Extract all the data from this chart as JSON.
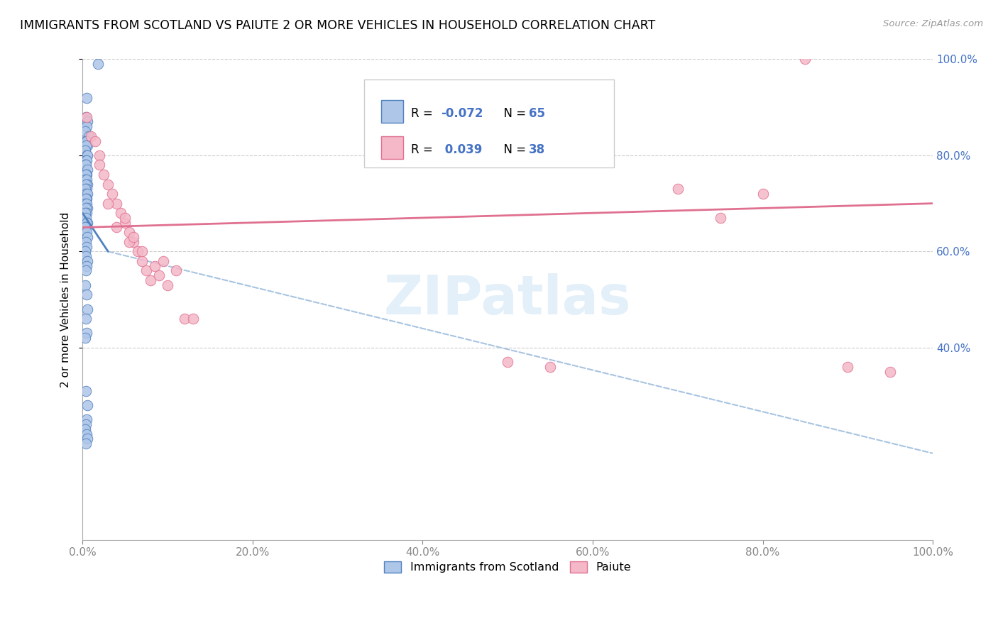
{
  "title": "IMMIGRANTS FROM SCOTLAND VS PAIUTE 2 OR MORE VEHICLES IN HOUSEHOLD CORRELATION CHART",
  "source": "Source: ZipAtlas.com",
  "ylabel": "2 or more Vehicles in Household",
  "xlim": [
    0,
    100
  ],
  "ylim": [
    0,
    100
  ],
  "blue_color": "#aec6e8",
  "pink_color": "#f4b8c8",
  "blue_line_color": "#5080c0",
  "pink_line_color": "#e07090",
  "dashed_line_color": "#a8c4e0",
  "watermark": "ZIPatlas",
  "scotland_x": [
    1.8,
    0.5,
    0.4,
    0.6,
    0.5,
    0.3,
    0.7,
    0.4,
    0.5,
    0.6,
    0.4,
    0.3,
    0.5,
    0.6,
    0.4,
    0.5,
    0.3,
    0.4,
    0.6,
    0.5,
    0.4,
    0.3,
    0.5,
    0.6,
    0.4,
    0.5,
    0.3,
    0.4,
    0.6,
    0.5,
    0.4,
    0.3,
    0.5,
    0.6,
    0.4,
    0.5,
    0.3,
    0.4,
    0.6,
    0.5,
    0.4,
    0.3,
    0.5,
    0.6,
    0.4,
    0.5,
    0.3,
    0.4,
    0.6,
    0.5,
    0.4,
    0.3,
    0.5,
    0.6,
    0.4,
    0.5,
    0.3,
    0.4,
    0.6,
    0.5,
    0.4,
    0.3,
    0.5,
    0.6,
    0.4
  ],
  "scotland_y": [
    99,
    92,
    88,
    87,
    86,
    85,
    84,
    83,
    83,
    82,
    82,
    81,
    80,
    80,
    79,
    79,
    78,
    78,
    77,
    76,
    76,
    75,
    75,
    74,
    74,
    73,
    73,
    72,
    72,
    71,
    71,
    70,
    70,
    69,
    69,
    68,
    68,
    67,
    66,
    66,
    65,
    65,
    64,
    63,
    62,
    61,
    60,
    59,
    58,
    57,
    56,
    53,
    51,
    48,
    46,
    43,
    42,
    31,
    28,
    25,
    24,
    23,
    22,
    21,
    20
  ],
  "paiute_x": [
    0.5,
    1.0,
    2.0,
    1.5,
    2.5,
    3.0,
    2.0,
    3.5,
    4.0,
    4.5,
    5.0,
    3.0,
    5.5,
    6.0,
    4.0,
    5.0,
    6.5,
    7.0,
    5.5,
    7.5,
    8.0,
    6.0,
    7.0,
    8.5,
    9.0,
    10.0,
    9.5,
    11.0,
    70.0,
    75.0,
    12.0,
    13.0,
    50.0,
    55.0,
    80.0,
    85.0,
    90.0,
    95.0
  ],
  "paiute_y": [
    88,
    84,
    80,
    83,
    76,
    74,
    78,
    72,
    70,
    68,
    66,
    70,
    64,
    62,
    65,
    67,
    60,
    58,
    62,
    56,
    54,
    63,
    60,
    57,
    55,
    53,
    58,
    56,
    73,
    67,
    46,
    46,
    37,
    36,
    72,
    100,
    36,
    35
  ],
  "blue_line_x0": 0,
  "blue_line_y0": 68,
  "blue_line_x1": 3.0,
  "blue_line_y1": 60,
  "blue_dash_x0": 3.0,
  "blue_dash_y0": 60,
  "blue_dash_x1": 100,
  "blue_dash_y1": 18,
  "pink_line_x0": 0,
  "pink_line_y0": 65,
  "pink_line_x1": 100,
  "pink_line_y1": 70
}
